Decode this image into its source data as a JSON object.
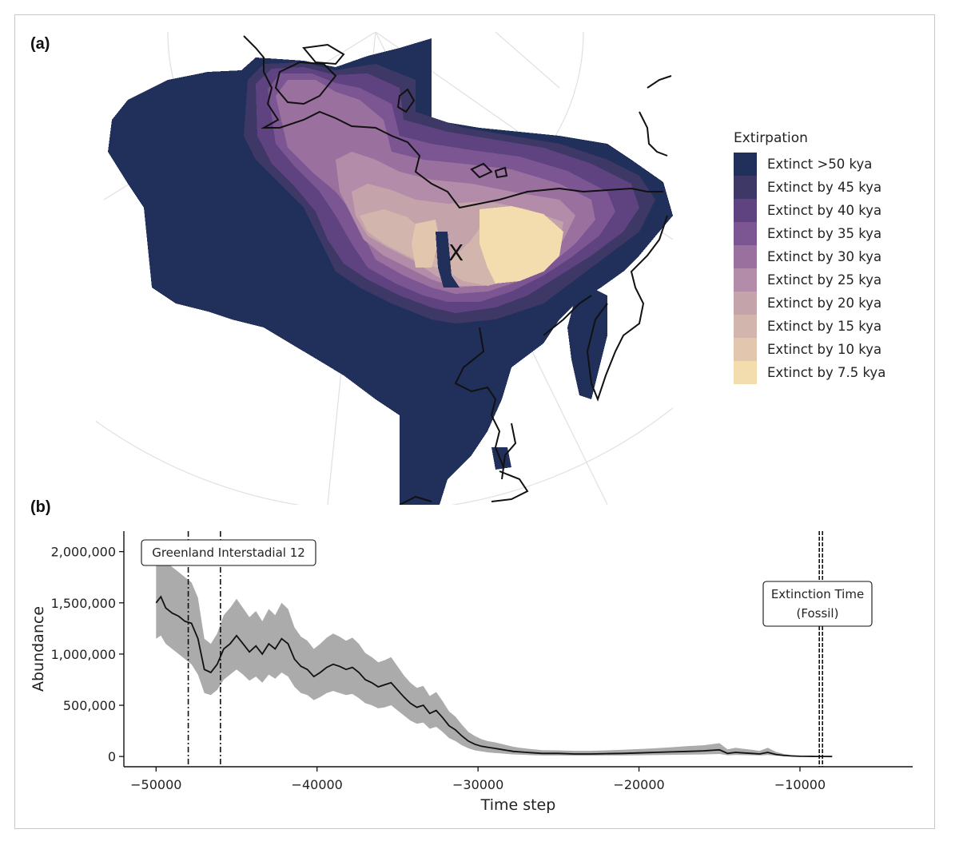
{
  "panels": {
    "a_label": "(a)",
    "b_label": "(b)"
  },
  "map": {
    "marker": "X",
    "legend_title": "Extirpation",
    "legend": [
      {
        "label": "Extinct >50 kya",
        "color": "#21305a"
      },
      {
        "label": "Extinct by 45 kya",
        "color": "#3e3866"
      },
      {
        "label": "Extinct by 40 kya",
        "color": "#5e4380"
      },
      {
        "label": "Extinct by 35 kya",
        "color": "#7c5593"
      },
      {
        "label": "Extinct by 30 kya",
        "color": "#9a709f"
      },
      {
        "label": "Extinct by 25 kya",
        "color": "#b28ca8"
      },
      {
        "label": "Extinct by 20 kya",
        "color": "#c4a3ab"
      },
      {
        "label": "Extinct by 15 kya",
        "color": "#d2b6ae"
      },
      {
        "label": "Extinct by 10 kya",
        "color": "#e2c6ad"
      },
      {
        "label": "Extinct by 7.5 kya",
        "color": "#f3dcae"
      }
    ]
  },
  "chart_data": {
    "type": "line",
    "title": "",
    "xlabel": "Time step",
    "ylabel": "Abundance",
    "xlim": [
      -52000,
      -3000
    ],
    "ylim": [
      -100000,
      2200000
    ],
    "x_ticks": [
      -50000,
      -40000,
      -30000,
      -20000,
      -10000
    ],
    "x_tick_labels": [
      "−50000",
      "−40000",
      "−30000",
      "−20000",
      "−10000"
    ],
    "y_ticks": [
      0,
      500000,
      1000000,
      1500000,
      2000000
    ],
    "y_tick_labels": [
      "0",
      "500,000",
      "1,000,000",
      "1,500,000",
      "2,000,000"
    ],
    "series": [
      {
        "values_x": [
          -50000,
          -49700,
          -49400,
          -49000,
          -48600,
          -48200,
          -47800,
          -47400,
          -47000,
          -46600,
          -46200,
          -45800,
          -45400,
          -45000,
          -44600,
          -44200,
          -43800,
          -43400,
          -43000,
          -42600,
          -42200,
          -41800,
          -41400,
          -41000,
          -40600,
          -40200,
          -39800,
          -39400,
          -39000,
          -38600,
          -38200,
          -37800,
          -37400,
          -37000,
          -36600,
          -36200,
          -35800,
          -35400,
          -35000,
          -34600,
          -34200,
          -33800,
          -33400,
          -33000,
          -32600,
          -32200,
          -31800,
          -31400,
          -31000,
          -30600,
          -30200,
          -29800,
          -29400,
          -29000,
          -28600,
          -28200,
          -27800,
          -27400,
          -27000,
          -26500,
          -26000,
          -25000,
          -24000,
          -23000,
          -22000,
          -21000,
          -20000,
          -19000,
          -18000,
          -17000,
          -16000,
          -15000,
          -14500,
          -14000,
          -13500,
          -13000,
          -12500,
          -12000,
          -11500,
          -11000,
          -10500,
          -10000,
          -9500,
          -9000,
          -8500,
          -8000
        ],
        "values": [
          1500000,
          1560000,
          1450000,
          1400000,
          1370000,
          1320000,
          1300000,
          1150000,
          850000,
          820000,
          900000,
          1050000,
          1100000,
          1180000,
          1100000,
          1020000,
          1080000,
          1000000,
          1100000,
          1050000,
          1150000,
          1100000,
          950000,
          880000,
          850000,
          780000,
          820000,
          870000,
          900000,
          880000,
          850000,
          870000,
          820000,
          750000,
          720000,
          680000,
          700000,
          720000,
          650000,
          580000,
          520000,
          480000,
          500000,
          420000,
          450000,
          380000,
          300000,
          260000,
          200000,
          150000,
          120000,
          100000,
          90000,
          80000,
          70000,
          60000,
          50000,
          45000,
          40000,
          35000,
          30000,
          30000,
          25000,
          25000,
          28000,
          30000,
          35000,
          40000,
          45000,
          50000,
          55000,
          65000,
          30000,
          40000,
          35000,
          30000,
          25000,
          40000,
          20000,
          10000,
          5000,
          2000,
          1000,
          500,
          200,
          0
        ],
        "lower": [
          1150000,
          1180000,
          1100000,
          1050000,
          1000000,
          950000,
          900000,
          800000,
          620000,
          600000,
          650000,
          750000,
          800000,
          850000,
          800000,
          740000,
          780000,
          720000,
          800000,
          760000,
          820000,
          780000,
          680000,
          620000,
          600000,
          550000,
          580000,
          620000,
          640000,
          620000,
          600000,
          610000,
          570000,
          520000,
          500000,
          470000,
          480000,
          500000,
          450000,
          400000,
          350000,
          320000,
          330000,
          270000,
          290000,
          240000,
          180000,
          150000,
          110000,
          80000,
          60000,
          50000,
          40000,
          35000,
          30000,
          25000,
          20000,
          18000,
          15000,
          12000,
          10000,
          10000,
          8000,
          8000,
          10000,
          10000,
          12000,
          14000,
          16000,
          18000,
          20000,
          25000,
          12000,
          15000,
          14000,
          12000,
          10000,
          15000,
          8000,
          3000,
          1000,
          500,
          200,
          100,
          50,
          0
        ],
        "upper": [
          1950000,
          2000000,
          1900000,
          1850000,
          1800000,
          1750000,
          1700000,
          1550000,
          1150000,
          1100000,
          1200000,
          1380000,
          1450000,
          1540000,
          1450000,
          1360000,
          1420000,
          1320000,
          1440000,
          1380000,
          1500000,
          1440000,
          1260000,
          1170000,
          1130000,
          1050000,
          1100000,
          1160000,
          1200000,
          1170000,
          1130000,
          1160000,
          1100000,
          1010000,
          970000,
          920000,
          940000,
          970000,
          880000,
          790000,
          720000,
          670000,
          690000,
          590000,
          630000,
          540000,
          440000,
          390000,
          310000,
          240000,
          200000,
          170000,
          150000,
          140000,
          125000,
          110000,
          95000,
          85000,
          78000,
          70000,
          62000,
          60000,
          55000,
          55000,
          60000,
          65000,
          72000,
          80000,
          90000,
          100000,
          110000,
          130000,
          70000,
          85000,
          75000,
          65000,
          55000,
          85000,
          45000,
          25000,
          12000,
          6000,
          3000,
          1500,
          600,
          100
        ]
      }
    ],
    "vlines": [
      {
        "x": -48000,
        "style": "dash-dot"
      },
      {
        "x": -46000,
        "style": "dash-dot"
      },
      {
        "x": -8800,
        "style": "dashed"
      },
      {
        "x": -8600,
        "style": "dashed"
      }
    ],
    "annotations": [
      {
        "lines": [
          "Greenland  Interstadial 12"
        ]
      },
      {
        "lines": [
          "Extinction Time",
          "(Fossil)"
        ]
      }
    ],
    "grid": false
  }
}
